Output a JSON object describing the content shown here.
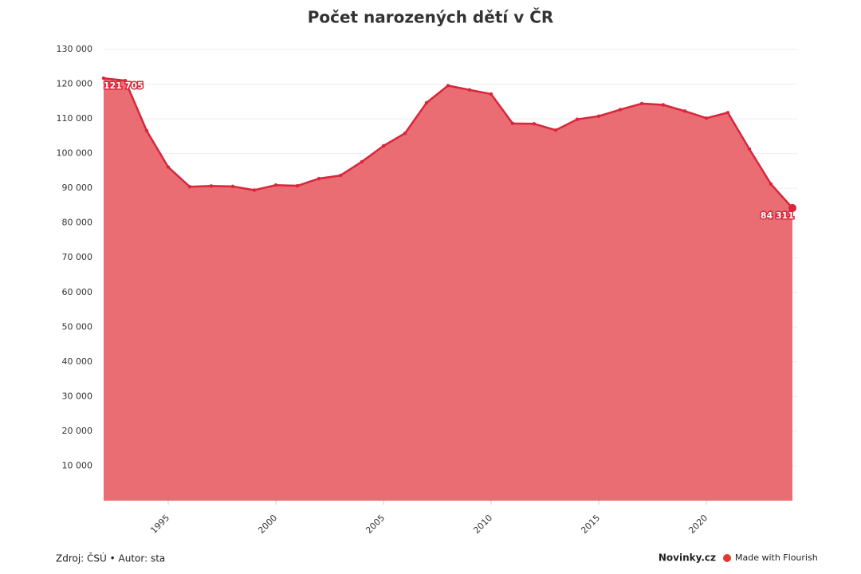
{
  "chart_data": {
    "type": "area",
    "title": "Počet narozených dětí v ČR",
    "x": [
      1992,
      1993,
      1994,
      1995,
      1996,
      1997,
      1998,
      1999,
      2000,
      2001,
      2002,
      2003,
      2004,
      2005,
      2006,
      2007,
      2008,
      2009,
      2010,
      2011,
      2012,
      2013,
      2014,
      2015,
      2016,
      2017,
      2018,
      2019,
      2020,
      2021,
      2022,
      2023,
      2024
    ],
    "values": [
      121705,
      121025,
      106579,
      96097,
      90446,
      90657,
      90535,
      89471,
      90910,
      90715,
      92786,
      93685,
      97664,
      102211,
      105831,
      114632,
      119570,
      118348,
      117153,
      108673,
      108576,
      106751,
      109860,
      110764,
      112663,
      114405,
      114036,
      112231,
      110200,
      111793,
      101299,
      91222,
      84311
    ],
    "value_labels": [
      "121 705",
      null,
      null,
      null,
      null,
      null,
      null,
      null,
      null,
      null,
      null,
      null,
      null,
      null,
      null,
      null,
      null,
      null,
      null,
      null,
      null,
      null,
      null,
      null,
      null,
      null,
      null,
      null,
      null,
      null,
      null,
      null,
      "84 311"
    ],
    "color": "#d9263a",
    "fill_color": "#e96d73",
    "xlim": [
      1992,
      2024
    ],
    "xticks": [
      1995,
      2000,
      2005,
      2010,
      2015,
      2020
    ],
    "ylim": [
      0,
      130000
    ],
    "yticks": [
      {
        "value": 10000,
        "label": "10 000"
      },
      {
        "value": 20000,
        "label": "20 000"
      },
      {
        "value": 30000,
        "label": "30 000"
      },
      {
        "value": 40000,
        "label": "40 000"
      },
      {
        "value": 50000,
        "label": "50 000"
      },
      {
        "value": 60000,
        "label": "60 000"
      },
      {
        "value": 70000,
        "label": "70 000"
      },
      {
        "value": 80000,
        "label": "80 000"
      },
      {
        "value": 90000,
        "label": "90 000"
      },
      {
        "value": 100000,
        "label": "100 000"
      },
      {
        "value": 110000,
        "label": "110 000"
      },
      {
        "value": 120000,
        "label": "120 000"
      },
      {
        "value": 130000,
        "label": "130 000"
      }
    ],
    "grid": true,
    "source": "Zdroj: ČSÚ • Autor: sta",
    "publisher": "Novinky.cz",
    "branding": "Made with Flourish"
  }
}
